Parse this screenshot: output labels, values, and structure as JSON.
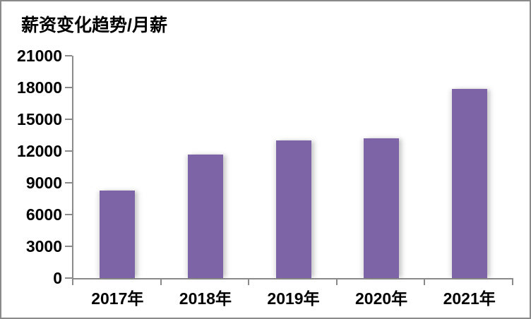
{
  "chart": {
    "colors": {
      "bar": "#7c64a7",
      "axis": "#8a8a8a",
      "frame": "#8a8a8a",
      "text": "#000000",
      "background": "#ffffff"
    }
  },
  "chart_data": {
    "type": "bar",
    "title": "薪资变化趋势/月薪",
    "categories": [
      "2017年",
      "2018年",
      "2019年",
      "2020年",
      "2021年"
    ],
    "values": [
      8300,
      11700,
      13000,
      13200,
      17900
    ],
    "series_name": "月薪",
    "xlabel": "",
    "ylabel": "",
    "ylim": [
      0,
      21000
    ],
    "ytick_step": 3000,
    "ytick_labels": [
      "0",
      "3000",
      "6000",
      "9000",
      "12000",
      "15000",
      "18000",
      "21000"
    ],
    "grid": false,
    "legend_position": "none"
  }
}
